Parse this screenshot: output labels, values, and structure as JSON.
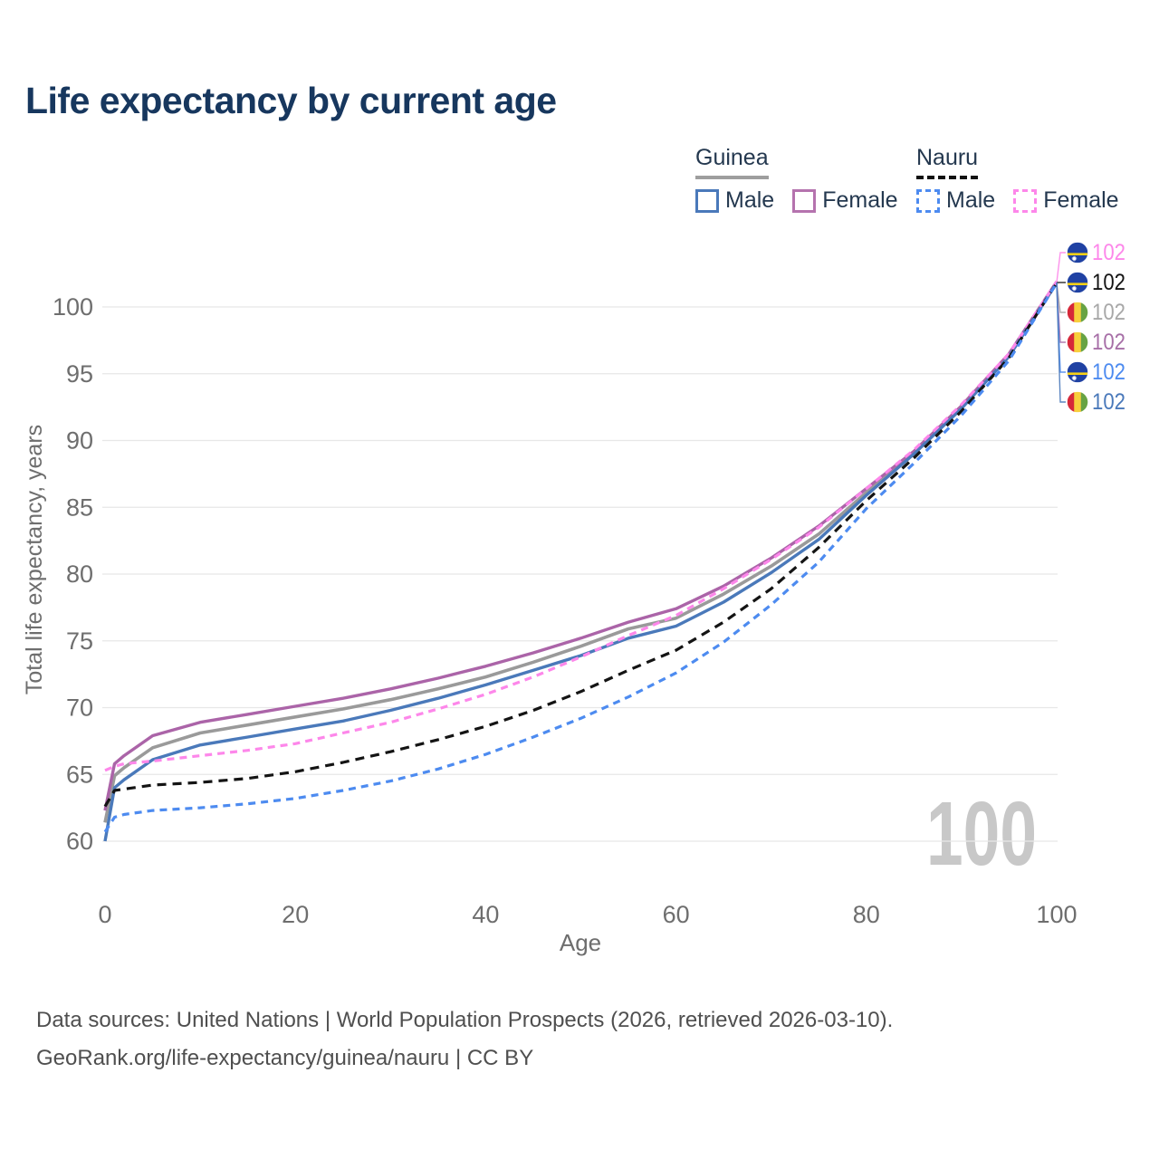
{
  "title": "Life expectancy by current age",
  "legend": {
    "groups": [
      {
        "country": "Guinea",
        "line_style": "solid",
        "underline_color": "#9e9e9e",
        "items": [
          {
            "label": "Male",
            "color": "#4a79ba"
          },
          {
            "label": "Female",
            "color": "#b573ae"
          }
        ]
      },
      {
        "country": "Nauru",
        "line_style": "dashed",
        "underline_color": "#111111",
        "items": [
          {
            "label": "Male",
            "color": "#4d8bf0"
          },
          {
            "label": "Female",
            "color": "#fd87ea"
          }
        ]
      }
    ]
  },
  "chart_data": {
    "type": "line",
    "title": "Life expectancy by current age",
    "xlabel": "Age",
    "ylabel": "Total life expectancy, years",
    "xlim": [
      0,
      100
    ],
    "ylim": [
      60,
      100
    ],
    "xticks": [
      0,
      20,
      40,
      60,
      80,
      100
    ],
    "yticks": [
      60,
      65,
      70,
      75,
      80,
      85,
      90,
      95,
      100
    ],
    "grid": true,
    "legend_position": "top-right",
    "watermark": "100",
    "x": [
      0,
      1,
      2,
      5,
      10,
      15,
      20,
      25,
      30,
      35,
      40,
      45,
      50,
      55,
      60,
      65,
      70,
      75,
      80,
      85,
      90,
      95,
      100
    ],
    "series": [
      {
        "name": "Guinea",
        "key": "guinea_total",
        "country": "Guinea",
        "sex": "Both",
        "color": "#9a9a9a",
        "dash": null,
        "width": 3.6,
        "values": [
          61.4,
          64.9,
          65.5,
          67.0,
          68.1,
          68.7,
          69.3,
          69.9,
          70.6,
          71.4,
          72.3,
          73.4,
          74.6,
          75.9,
          76.7,
          78.5,
          80.6,
          83.0,
          86.1,
          89.1,
          92.5,
          96.4,
          101.8
        ]
      },
      {
        "name": "Guinea Female",
        "key": "guinea_female",
        "country": "Guinea",
        "sex": "Female",
        "color": "#ab64a8",
        "dash": null,
        "width": 3.4,
        "values": [
          62.3,
          65.8,
          66.4,
          67.9,
          68.9,
          69.5,
          70.1,
          70.7,
          71.4,
          72.2,
          73.1,
          74.1,
          75.2,
          76.4,
          77.4,
          79.1,
          81.2,
          83.6,
          86.4,
          89.2,
          92.6,
          96.5,
          101.9
        ]
      },
      {
        "name": "Guinea Male",
        "key": "guinea_male",
        "country": "Guinea",
        "sex": "Male",
        "color": "#4a79ba",
        "dash": null,
        "width": 3.4,
        "values": [
          60.0,
          64.0,
          64.6,
          66.1,
          67.2,
          67.8,
          68.4,
          69.0,
          69.8,
          70.7,
          71.7,
          72.8,
          73.9,
          75.2,
          76.1,
          77.9,
          80.1,
          82.6,
          85.9,
          89.0,
          92.4,
          96.3,
          101.8
        ]
      },
      {
        "name": "Nauru Female",
        "key": "nauru_female",
        "country": "Nauru",
        "sex": "Female",
        "color": "#fd87ea",
        "dash": "8 6",
        "width": 3.2,
        "values": [
          65.3,
          65.6,
          65.8,
          66.0,
          66.4,
          66.8,
          67.3,
          68.1,
          68.9,
          69.9,
          71.0,
          72.3,
          73.8,
          75.4,
          76.9,
          78.9,
          81.1,
          83.5,
          86.4,
          89.3,
          92.7,
          96.5,
          101.9
        ]
      },
      {
        "name": "Nauru",
        "key": "nauru_total",
        "country": "Nauru",
        "sex": "Both",
        "color": "#141414",
        "dash": "10 7",
        "width": 3.2,
        "values": [
          62.6,
          63.8,
          63.9,
          64.2,
          64.4,
          64.7,
          65.2,
          65.9,
          66.7,
          67.6,
          68.6,
          69.8,
          71.2,
          72.8,
          74.3,
          76.4,
          78.9,
          82.0,
          85.5,
          88.7,
          92.2,
          96.2,
          101.8
        ]
      },
      {
        "name": "Nauru Male",
        "key": "nauru_male",
        "country": "Nauru",
        "sex": "Male",
        "color": "#4d8bf0",
        "dash": "8 6",
        "width": 3.2,
        "values": [
          60.7,
          61.8,
          62.0,
          62.3,
          62.5,
          62.8,
          63.2,
          63.8,
          64.5,
          65.4,
          66.5,
          67.8,
          69.2,
          70.8,
          72.6,
          74.9,
          77.7,
          80.9,
          84.9,
          88.3,
          91.9,
          96.0,
          101.8
        ]
      }
    ],
    "end_labels": [
      {
        "series": "Nauru Female",
        "value": "102",
        "color": "#fd87ea",
        "flag": "nauru"
      },
      {
        "series": "Nauru",
        "value": "102",
        "color": "#141414",
        "flag": "nauru"
      },
      {
        "series": "Guinea",
        "value": "102",
        "color": "#a8a8a8",
        "flag": "guinea"
      },
      {
        "series": "Guinea Female",
        "value": "102",
        "color": "#a76fa7",
        "flag": "guinea"
      },
      {
        "series": "Nauru Male",
        "value": "102",
        "color": "#4d8bf0",
        "flag": "nauru"
      },
      {
        "series": "Guinea Male",
        "value": "102",
        "color": "#4a79ba",
        "flag": "guinea"
      }
    ],
    "flag_colors": {
      "nauru": {
        "base": "#1f41a3",
        "stripe": "#f7d117",
        "star": "#ffffff"
      },
      "guinea": {
        "left": "#d62839",
        "middle": "#f7cf3d",
        "right": "#67a344"
      }
    }
  },
  "footer": {
    "line1": "Data sources: United Nations | World Population Prospects (2026, retrieved 2026-03-10).",
    "line2": "GeoRank.org/life-expectancy/guinea/nauru | CC BY"
  }
}
